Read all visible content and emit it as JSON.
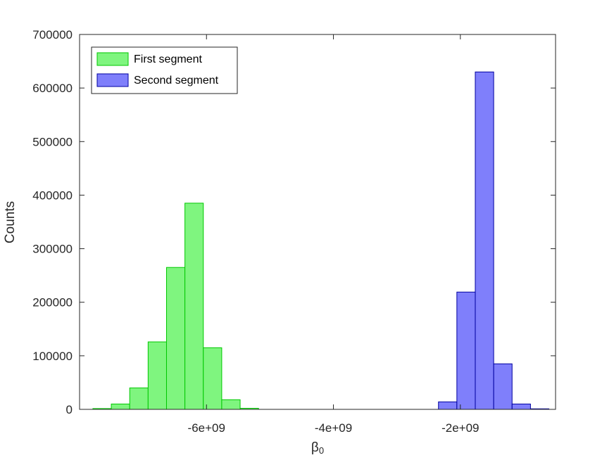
{
  "chart_data": {
    "type": "bar",
    "xlabel": "β",
    "xlabel_subscript": "0",
    "ylabel": "Counts",
    "xlim": [
      -8000000000,
      -500000000
    ],
    "ylim": [
      0,
      700000
    ],
    "xticks": [
      {
        "value": -6000000000,
        "label": "-6e+09"
      },
      {
        "value": -4000000000,
        "label": "-4e+09"
      },
      {
        "value": -2000000000,
        "label": "-2e+09"
      }
    ],
    "yticks": [
      {
        "value": 0,
        "label": "0"
      },
      {
        "value": 100000,
        "label": "100000"
      },
      {
        "value": 200000,
        "label": "200000"
      },
      {
        "value": 300000,
        "label": "300000"
      },
      {
        "value": 400000,
        "label": "400000"
      },
      {
        "value": 500000,
        "label": "500000"
      },
      {
        "value": 600000,
        "label": "600000"
      },
      {
        "value": 700000,
        "label": "700000"
      }
    ],
    "legend_position": "top-left",
    "grid": false,
    "series": [
      {
        "name": "First segment",
        "fill": "#7ff57f",
        "stroke": "#00c800",
        "bin_width": 290000000,
        "bin_centers": [
          -7645000000,
          -7355000000,
          -7065000000,
          -6775000000,
          -6485000000,
          -6195000000,
          -5905000000,
          -5615000000,
          -5325000000
        ],
        "values": [
          1500,
          10000,
          40000,
          126000,
          265000,
          385000,
          115000,
          18000,
          2000
        ]
      },
      {
        "name": "Second segment",
        "fill": "#7f7ffb",
        "stroke": "#0000a0",
        "bin_width": 290000000,
        "bin_centers": [
          -2200000000,
          -1910000000,
          -1620000000,
          -1330000000,
          -1040000000,
          -750000000
        ],
        "values": [
          14000,
          219000,
          630000,
          85000,
          10000,
          1000
        ]
      }
    ]
  }
}
